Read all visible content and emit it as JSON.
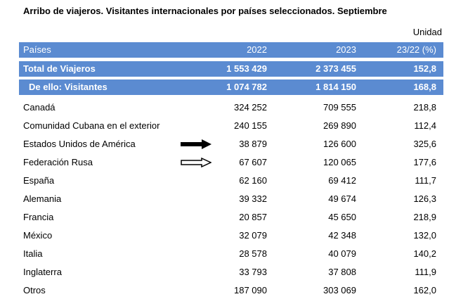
{
  "title": "Arribo de viajeros. Visitantes internacionales por países seleccionados. Septiembre",
  "unit_label": "Unidad",
  "header": [
    "Países",
    "2022",
    "2023",
    "23/22 (%)"
  ],
  "total": [
    "Total de Viajeros",
    "1 553 429",
    "2 373 455",
    "152,8"
  ],
  "visitors": [
    "De ello: Visitantes",
    "1 074 782",
    "1 814 150",
    "168,8"
  ],
  "rows": [
    [
      "Canadá",
      "324 252",
      "709 555",
      "218,8"
    ],
    [
      "Comunidad Cubana en el exterior",
      "240 155",
      "269 890",
      "112,4"
    ],
    [
      "Estados Unidos de América",
      "38 879",
      "126 600",
      "325,6"
    ],
    [
      "Federación Rusa",
      "67 607",
      "120 065",
      "177,6"
    ],
    [
      "España",
      "62 160",
      "69 412",
      "111,7"
    ],
    [
      "Alemania",
      "39 332",
      "49 674",
      "126,3"
    ],
    [
      "Francia",
      "20 857",
      "45 650",
      "218,9"
    ],
    [
      "México",
      "32 079",
      "42 348",
      "132,0"
    ],
    [
      "Italia",
      "28 578",
      "40 079",
      "140,2"
    ],
    [
      "Inglaterra",
      "33 793",
      "37 808",
      "111,9"
    ],
    [
      "Otros",
      "187 090",
      "303 069",
      "162,0"
    ]
  ],
  "annotations": {
    "arrow_1_icon": "filled-arrow-right-icon",
    "arrow_2_icon": "outline-arrow-right-icon"
  }
}
